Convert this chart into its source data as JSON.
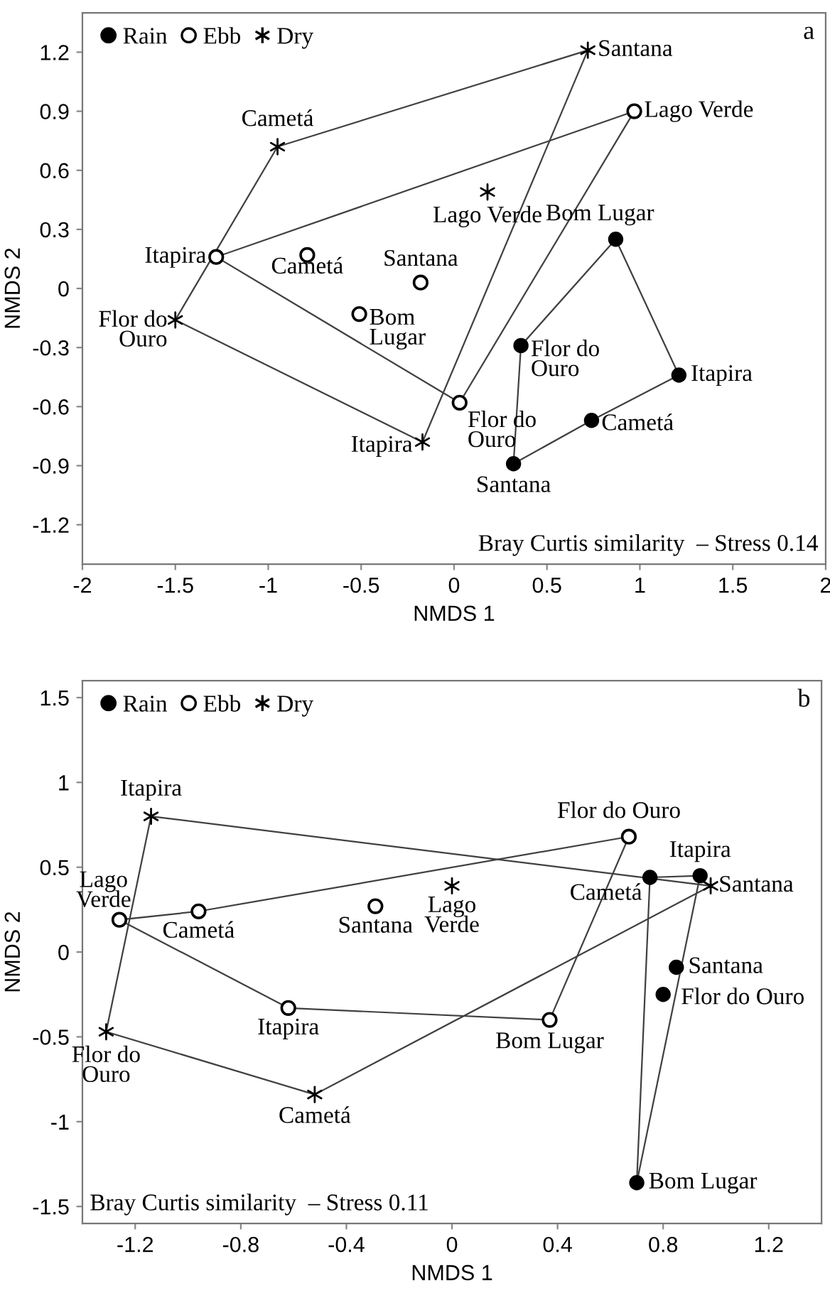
{
  "chart_data": [
    {
      "type": "scatter",
      "xlabel": "NMDS 1",
      "ylabel": "NMDS 2",
      "xlim": [
        -2,
        2
      ],
      "ylim": [
        -1.4,
        1.4
      ],
      "xticks": [
        -2,
        -1.5,
        -1,
        -0.5,
        0,
        0.5,
        1,
        1.5,
        2
      ],
      "yticks": [
        -1.2,
        -0.9,
        -0.6,
        -0.3,
        0,
        0.3,
        0.6,
        0.9,
        1.2
      ],
      "grid": false,
      "legend": "top left",
      "series": [
        {
          "name": "Rain",
          "marker": "circle",
          "color": "#000000",
          "x": [
            0.87,
            0.36,
            1.21,
            0.74,
            0.32
          ],
          "values": [
            0.25,
            -0.29,
            -0.44,
            -0.67,
            -0.89
          ]
        },
        {
          "name": "Ebb",
          "marker": "open circle",
          "color": "#000000",
          "x": [
            -1.28,
            -0.79,
            -0.51,
            -0.18,
            0.03,
            0.97
          ],
          "values": [
            0.16,
            0.17,
            -0.13,
            0.03,
            -0.58,
            0.9
          ]
        },
        {
          "name": "Dry",
          "marker": "cross",
          "color": "#000000",
          "x": [
            -0.95,
            -1.5,
            -0.17,
            0.72,
            0.18
          ],
          "values": [
            0.72,
            -0.16,
            -0.78,
            1.21,
            0.49
          ]
        },
        {
          "type": "line",
          "marker": "none",
          "color": "#404040",
          "x": [
            0.32,
            0.36,
            0.87,
            1.21
          ],
          "values": [
            -0.89,
            -0.29,
            0.25,
            -0.44
          ]
        },
        {
          "type": "line",
          "marker": "none",
          "color": "#404040",
          "x": [
            0.32,
            0.74,
            1.21
          ],
          "values": [
            -0.89,
            -0.67,
            -0.44
          ]
        },
        {
          "type": "line",
          "marker": "none",
          "color": "#404040",
          "x": [
            -1.28,
            0.97
          ],
          "values": [
            0.16,
            0.9
          ]
        },
        {
          "type": "line",
          "marker": "none",
          "color": "#404040",
          "x": [
            -1.28,
            0.03,
            0.97
          ],
          "values": [
            0.16,
            -0.58,
            0.9
          ]
        },
        {
          "type": "line",
          "marker": "none",
          "color": "#404040",
          "x": [
            -1.5,
            -0.95,
            0.72
          ],
          "values": [
            -0.16,
            0.72,
            1.21
          ]
        },
        {
          "type": "line",
          "marker": "none",
          "color": "#404040",
          "x": [
            -1.5,
            -0.17,
            0.72
          ],
          "values": [
            -0.16,
            -0.78,
            1.21
          ]
        }
      ],
      "annotations": [
        {
          "text": "Bom Lugar",
          "x": 0.87,
          "y": 0.25
        },
        {
          "text": "Flor do\nOuro",
          "x": 0.36,
          "y": -0.29
        },
        {
          "text": "Itapira",
          "x": 1.21,
          "y": -0.44
        },
        {
          "text": "Cametá",
          "x": 0.74,
          "y": -0.67
        },
        {
          "text": "Santana",
          "x": 0.32,
          "y": -0.89
        },
        {
          "text": "Itapira",
          "x": -1.28,
          "y": 0.16
        },
        {
          "text": "Cametá",
          "x": -0.79,
          "y": 0.17
        },
        {
          "text": "Bom\nLugar",
          "x": -0.51,
          "y": -0.13
        },
        {
          "text": "Santana",
          "x": -0.18,
          "y": 0.03
        },
        {
          "text": "Flor do\nOuro",
          "x": 0.03,
          "y": -0.58
        },
        {
          "text": "Lago Verde",
          "x": 0.97,
          "y": 0.9
        },
        {
          "text": "Cametá",
          "x": -0.95,
          "y": 0.72
        },
        {
          "text": "Flor do\nOuro",
          "x": -1.5,
          "y": -0.16
        },
        {
          "text": "Itapira",
          "x": -0.17,
          "y": -0.78
        },
        {
          "text": "Santana",
          "x": 0.72,
          "y": 1.21
        },
        {
          "text": "Lago Verde",
          "x": 0.18,
          "y": 0.49
        },
        "Bray Curtis similarity  – Stress 0.14",
        "a"
      ]
    },
    {
      "type": "scatter",
      "xlabel": "NMDS 1",
      "ylabel": "NMDS 2",
      "xlim": [
        -1.4,
        1.4
      ],
      "ylim": [
        -1.6,
        1.6
      ],
      "xticks": [
        -1.2,
        -0.8,
        -0.4,
        0,
        0.4,
        0.8,
        1.2
      ],
      "yticks": [
        -1.5,
        -1,
        -0.5,
        0,
        0.5,
        1,
        1.5
      ],
      "grid": false,
      "legend": "top left",
      "series": [
        {
          "name": "Rain",
          "marker": "circle",
          "color": "#000000",
          "x": [
            0.75,
            0.94,
            0.85,
            0.8,
            0.7
          ],
          "values": [
            0.44,
            0.45,
            -0.09,
            -0.25,
            -1.36
          ]
        },
        {
          "name": "Ebb",
          "marker": "open circle",
          "color": "#000000",
          "x": [
            -1.26,
            -0.96,
            -0.29,
            -0.62,
            0.37,
            0.67
          ],
          "values": [
            0.19,
            0.24,
            0.27,
            -0.33,
            -0.4,
            0.68
          ]
        },
        {
          "name": "Dry",
          "marker": "cross",
          "color": "#000000",
          "x": [
            -1.14,
            -1.31,
            -0.52,
            0.0,
            0.98
          ],
          "values": [
            0.8,
            -0.47,
            -0.84,
            0.39,
            0.39
          ]
        },
        {
          "type": "line",
          "marker": "none",
          "color": "#404040",
          "x": [
            0.7,
            0.75,
            0.94
          ],
          "values": [
            -1.36,
            0.44,
            0.45
          ]
        },
        {
          "type": "line",
          "marker": "none",
          "color": "#404040",
          "x": [
            0.7,
            0.94
          ],
          "values": [
            -1.36,
            0.45
          ]
        },
        {
          "type": "line",
          "marker": "none",
          "color": "#404040",
          "x": [
            -1.26,
            -0.96,
            0.67
          ],
          "values": [
            0.19,
            0.24,
            0.68
          ]
        },
        {
          "type": "line",
          "marker": "none",
          "color": "#404040",
          "x": [
            -1.26,
            -0.62,
            0.37,
            0.67
          ],
          "values": [
            0.19,
            -0.33,
            -0.4,
            0.68
          ]
        },
        {
          "type": "line",
          "marker": "none",
          "color": "#404040",
          "x": [
            -1.31,
            -1.14,
            0.98
          ],
          "values": [
            -0.47,
            0.8,
            0.39
          ]
        },
        {
          "type": "line",
          "marker": "none",
          "color": "#404040",
          "x": [
            -1.31,
            -0.52,
            0.98
          ],
          "values": [
            -0.47,
            -0.84,
            0.39
          ]
        }
      ],
      "annotations": [
        {
          "text": "Cametá",
          "x": 0.75,
          "y": 0.44
        },
        {
          "text": "Itapira",
          "x": 0.94,
          "y": 0.45
        },
        {
          "text": "Santana",
          "x": 0.85,
          "y": -0.09
        },
        {
          "text": "Flor do Ouro",
          "x": 0.8,
          "y": -0.25
        },
        {
          "text": "Bom Lugar",
          "x": 0.7,
          "y": -1.36
        },
        {
          "text": "Lago\nVerde",
          "x": -1.26,
          "y": 0.19
        },
        {
          "text": "Cametá",
          "x": -0.96,
          "y": 0.24
        },
        {
          "text": "Santana",
          "x": -0.29,
          "y": 0.27
        },
        {
          "text": "Itapira",
          "x": -0.62,
          "y": -0.33
        },
        {
          "text": "Bom Lugar",
          "x": 0.37,
          "y": -0.4
        },
        {
          "text": "Flor do Ouro",
          "x": 0.67,
          "y": 0.68
        },
        {
          "text": "Itapira",
          "x": -1.14,
          "y": 0.8
        },
        {
          "text": "Flor do\nOuro",
          "x": -1.31,
          "y": -0.47
        },
        {
          "text": "Cametá",
          "x": -0.52,
          "y": -0.84
        },
        {
          "text": "Lago\nVerde",
          "x": 0.0,
          "y": 0.39
        },
        {
          "text": "Santana",
          "x": 0.98,
          "y": 0.39
        },
        "Bray Curtis similarity  – Stress 0.11",
        "b"
      ]
    }
  ]
}
